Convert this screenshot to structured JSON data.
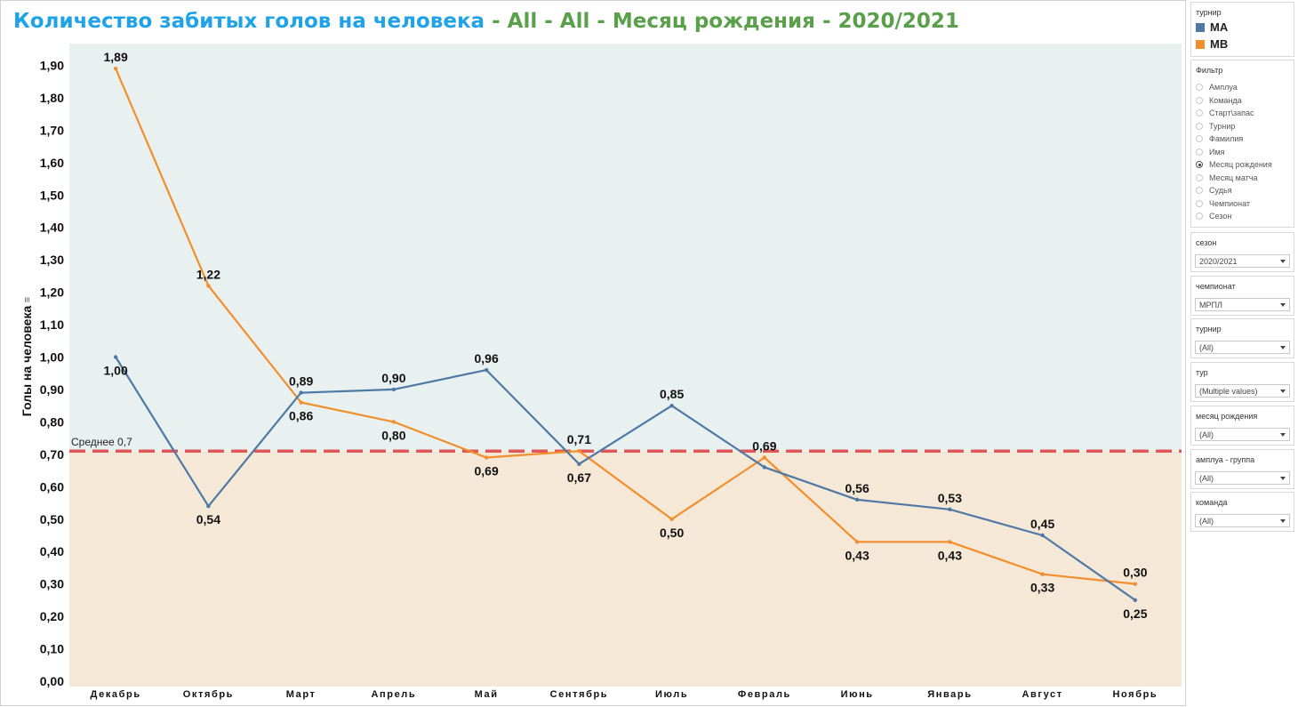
{
  "title": {
    "main": "Количество забитых голов на человека",
    "rest": " - All - All - Месяц рождения - 2020/2021"
  },
  "colors": {
    "MA": "#4e79a7",
    "MB": "#f28e2b",
    "avg_line": "#e15759",
    "band_above": "#e8f1ef",
    "band_below": "#f6e8d6"
  },
  "chart_data": {
    "type": "line",
    "categories": [
      "Декабрь",
      "Октябрь",
      "Март",
      "Апрель",
      "Май",
      "Сентябрь",
      "Июль",
      "Февраль",
      "Июнь",
      "Январь",
      "Август",
      "Ноябрь"
    ],
    "series": [
      {
        "name": "MA",
        "values": [
          1.0,
          0.54,
          0.89,
          0.9,
          0.96,
          0.67,
          0.85,
          0.66,
          0.56,
          0.53,
          0.45,
          0.25
        ],
        "labels": [
          "1,00",
          "0,54",
          "0,89",
          "0,90",
          "0,96",
          "0,67",
          "0,85",
          "",
          "0,56",
          "0,53",
          "0,45",
          "0,25"
        ]
      },
      {
        "name": "MB",
        "values": [
          1.89,
          1.22,
          0.86,
          0.8,
          0.69,
          0.71,
          0.5,
          0.69,
          0.43,
          0.43,
          0.33,
          0.3
        ],
        "labels": [
          "1,89",
          "1,22",
          "0,86",
          "0,80",
          "0,69",
          "0,71",
          "0,50",
          "0,69",
          "0,43",
          "0,43",
          "0,33",
          "0,30"
        ]
      }
    ],
    "ylabel": "Голы на человека",
    "ylim": [
      0,
      1.95
    ],
    "yticks": [
      "0,00",
      "0,10",
      "0,20",
      "0,30",
      "0,40",
      "0,50",
      "0,60",
      "0,70",
      "0,80",
      "0,90",
      "1,00",
      "1,10",
      "1,20",
      "1,30",
      "1,40",
      "1,50",
      "1,60",
      "1,70",
      "1,80",
      "1,90"
    ],
    "reference_line": {
      "label": "Среднее 0,7",
      "value": 0.71
    }
  },
  "sidebar": {
    "legend": {
      "title": "турнир",
      "items": [
        {
          "label": "MA",
          "color": "#4e79a7"
        },
        {
          "label": "MB",
          "color": "#f28e2b"
        }
      ]
    },
    "filter": {
      "title": "Фильтр",
      "options": [
        "Амплуа",
        "Команда",
        "Старт\\запас",
        "Турнир",
        "Фамилия",
        "Имя",
        "Месяц рождения",
        "Месяц матча",
        "Судья",
        "Чемпионат",
        "Сезон"
      ],
      "selected": "Месяц рождения"
    },
    "dropdowns": [
      {
        "label": "сезон",
        "value": "2020/2021"
      },
      {
        "label": "чемпионат",
        "value": "МРПЛ"
      },
      {
        "label": "турнир",
        "value": "(All)"
      },
      {
        "label": "тур",
        "value": "(Multiple values)"
      },
      {
        "label": "месяц рождения",
        "value": "(All)"
      },
      {
        "label": "амплуа - группа",
        "value": "(All)"
      },
      {
        "label": "команда",
        "value": "(All)"
      }
    ]
  }
}
